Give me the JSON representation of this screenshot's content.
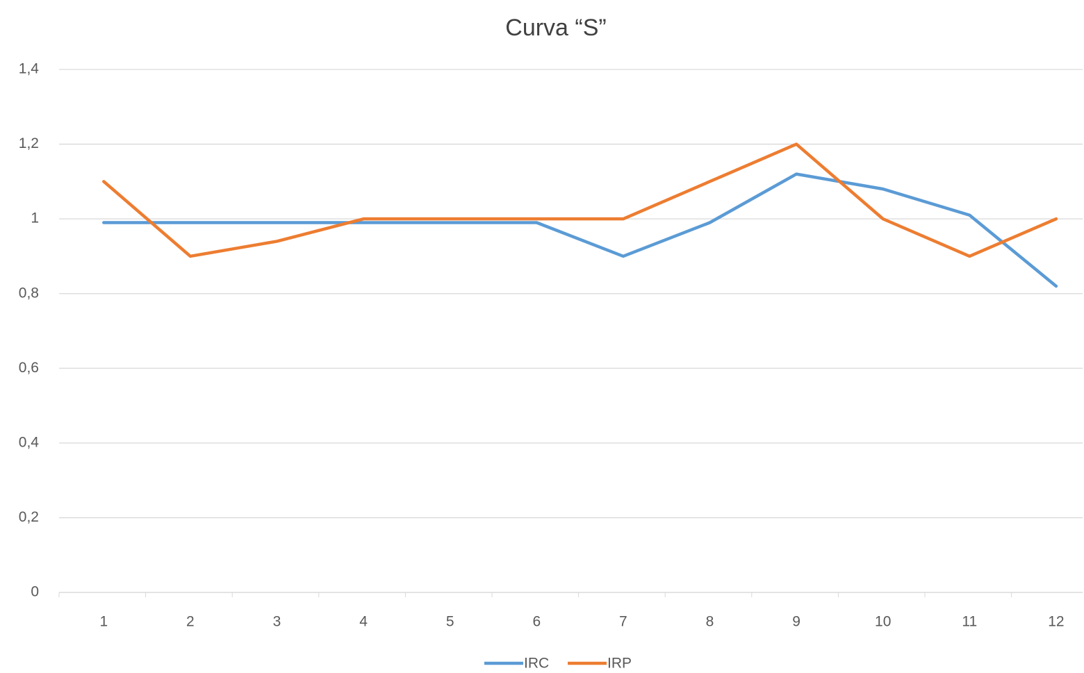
{
  "chart_data": {
    "type": "line",
    "title": "Curva “S”",
    "categories": [
      "1",
      "2",
      "3",
      "4",
      "5",
      "6",
      "7",
      "8",
      "9",
      "10",
      "11",
      "12"
    ],
    "series": [
      {
        "name": "IRC",
        "color": "#5b9bd5",
        "values": [
          0.99,
          0.99,
          0.99,
          0.99,
          0.99,
          0.99,
          0.9,
          0.99,
          1.12,
          1.08,
          1.01,
          0.82
        ]
      },
      {
        "name": "IRP",
        "color": "#ed7d31",
        "values": [
          1.1,
          0.9,
          0.94,
          1,
          1,
          1,
          1,
          1.1,
          1.2,
          1,
          0.9,
          1
        ]
      }
    ],
    "ylim": [
      0,
      1.4
    ],
    "yticks": [
      0,
      {
        "value": 0.2,
        "label": "0,2"
      },
      {
        "value": 0.4,
        "label": "0,4"
      },
      {
        "value": 0.6,
        "label": "0,6"
      },
      {
        "value": 0.8,
        "label": "0,8"
      },
      1,
      {
        "value": 1.2,
        "label": "1,2"
      },
      {
        "value": 1.4,
        "label": "1,4"
      }
    ],
    "grid": true,
    "legend": "bottom"
  }
}
